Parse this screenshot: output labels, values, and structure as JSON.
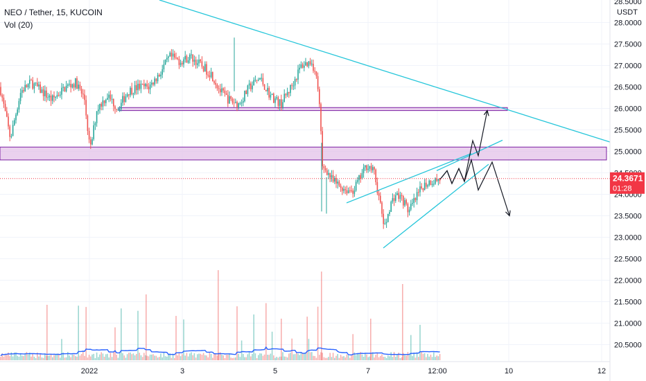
{
  "header": {
    "symbol": "NEO / Tether, 15, KUCOIN",
    "indicator": "Vol (20)"
  },
  "price_scale": {
    "currency": "USDT",
    "top_partial": "28.5000"
  },
  "last_price": {
    "value": "24.3671",
    "countdown": "01:28",
    "color": "#f23645"
  },
  "colors": {
    "up": "#26a69a",
    "down": "#ef5350",
    "trendline": "#26c6da",
    "zone_fill": "#e1bee7",
    "zone_border": "#7b1fa2",
    "volume_ma": "#2962ff",
    "projection": "#131722"
  },
  "chart_data": {
    "type": "candlestick",
    "y_ticks": [
      "28.0000",
      "27.5000",
      "27.0000",
      "26.5000",
      "26.0000",
      "25.5000",
      "25.0000",
      "24.5000",
      "24.0000",
      "23.5000",
      "23.0000",
      "22.5000",
      "22.0000",
      "21.5000",
      "21.0000",
      "20.5000"
    ],
    "y_range": [
      20.22,
      28.52
    ],
    "x_ticks": [
      "2022",
      "3",
      "5",
      "7",
      "12:00",
      "10",
      "12"
    ],
    "price_path": [
      [
        0,
        26.5
      ],
      [
        15,
        25.3
      ],
      [
        30,
        26.4
      ],
      [
        45,
        26.6
      ],
      [
        60,
        26.4
      ],
      [
        75,
        26.2
      ],
      [
        95,
        26.5
      ],
      [
        110,
        26.6
      ],
      [
        122,
        26.2
      ],
      [
        130,
        25.0
      ],
      [
        140,
        26.0
      ],
      [
        155,
        26.3
      ],
      [
        170,
        26.0
      ],
      [
        185,
        26.4
      ],
      [
        200,
        26.5
      ],
      [
        215,
        26.5
      ],
      [
        230,
        26.8
      ],
      [
        245,
        27.2
      ],
      [
        260,
        27.1
      ],
      [
        275,
        27.2
      ],
      [
        290,
        27.0
      ],
      [
        305,
        26.8
      ],
      [
        318,
        26.4
      ],
      [
        330,
        26.2
      ],
      [
        345,
        26.1
      ],
      [
        360,
        26.5
      ],
      [
        375,
        26.7
      ],
      [
        390,
        26.3
      ],
      [
        405,
        26.1
      ],
      [
        420,
        26.5
      ],
      [
        435,
        27.0
      ],
      [
        450,
        27.1
      ],
      [
        458,
        26.6
      ],
      [
        462,
        25.8
      ],
      [
        465,
        24.6
      ],
      [
        470,
        24.6
      ],
      [
        480,
        24.3
      ],
      [
        490,
        24.2
      ],
      [
        500,
        24.1
      ],
      [
        510,
        24.1
      ],
      [
        520,
        24.4
      ],
      [
        530,
        24.7
      ],
      [
        540,
        24.5
      ],
      [
        548,
        23.8
      ],
      [
        555,
        23.2
      ],
      [
        562,
        23.7
      ],
      [
        570,
        24.0
      ],
      [
        580,
        23.9
      ],
      [
        590,
        23.6
      ],
      [
        600,
        23.9
      ],
      [
        610,
        24.2
      ],
      [
        620,
        24.3
      ],
      [
        635,
        24.35
      ]
    ],
    "spike_wicks": [
      [
        338,
        27.65,
        26.4
      ],
      [
        464,
        25.2,
        23.6
      ],
      [
        471,
        24.4,
        23.55
      ]
    ],
    "trendlines": [
      {
        "points": [
          [
            20.0,
            30.0
          ],
          [
            70.0,
            25.2
          ]
        ]
      },
      {
        "points": [
          [
            500,
            23.8
          ],
          [
            680,
            24.9
          ]
        ]
      },
      {
        "points": [
          [
            553,
            22.75
          ],
          [
            705,
            24.7
          ]
        ]
      },
      {
        "points": [
          [
            630,
            24.55
          ],
          [
            725,
            25.26
          ]
        ]
      }
    ],
    "zones": [
      {
        "x_start": 0,
        "x_end": 875,
        "y_top": 25.1,
        "y_bottom": 24.8
      },
      {
        "x_start": 172,
        "x_end": 732,
        "y_top": 26.02,
        "y_bottom": 25.95
      }
    ],
    "projections": [
      {
        "points": [
          [
            635,
            24.35
          ],
          [
            645,
            24.55
          ],
          [
            652,
            24.25
          ],
          [
            662,
            24.6
          ],
          [
            670,
            24.3
          ],
          [
            682,
            25.25
          ],
          [
            690,
            24.9
          ],
          [
            703,
            25.95
          ]
        ]
      },
      {
        "points": [
          [
            635,
            24.35
          ],
          [
            645,
            24.55
          ],
          [
            652,
            24.25
          ],
          [
            662,
            24.6
          ],
          [
            670,
            24.3
          ],
          [
            680,
            24.8
          ],
          [
            690,
            24.1
          ],
          [
            710,
            24.75
          ],
          [
            735,
            23.5
          ]
        ]
      }
    ]
  }
}
